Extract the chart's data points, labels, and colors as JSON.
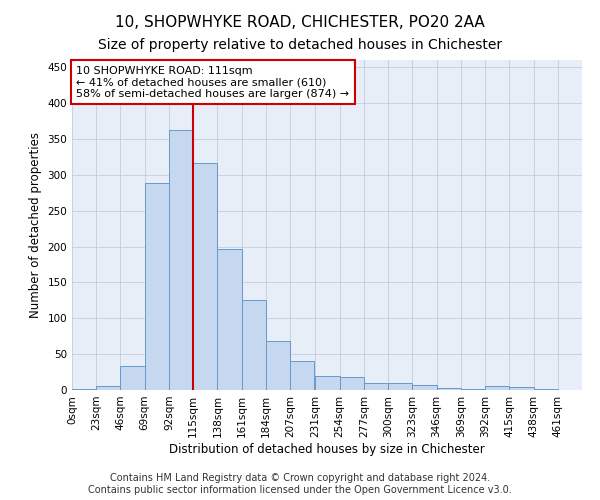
{
  "title": "10, SHOPWHYKE ROAD, CHICHESTER, PO20 2AA",
  "subtitle": "Size of property relative to detached houses in Chichester",
  "xlabel": "Distribution of detached houses by size in Chichester",
  "ylabel": "Number of detached properties",
  "bar_color": "#c5d8f0",
  "bar_edge_color": "#6699cc",
  "background_color": "#e8eef8",
  "annotation_box_color": "#cc0000",
  "annotation_line1": "10 SHOPWHYKE ROAD: 111sqm",
  "annotation_line2": "← 41% of detached houses are smaller (610)",
  "annotation_line3": "58% of semi-detached houses are larger (874) →",
  "vline_x": 115,
  "vline_color": "#cc0000",
  "categories": [
    "0sqm",
    "23sqm",
    "46sqm",
    "69sqm",
    "92sqm",
    "115sqm",
    "138sqm",
    "161sqm",
    "184sqm",
    "207sqm",
    "231sqm",
    "254sqm",
    "277sqm",
    "300sqm",
    "323sqm",
    "346sqm",
    "369sqm",
    "392sqm",
    "415sqm",
    "438sqm",
    "461sqm"
  ],
  "bin_edges": [
    0,
    23,
    46,
    69,
    92,
    115,
    138,
    161,
    184,
    207,
    231,
    254,
    277,
    300,
    323,
    346,
    369,
    392,
    415,
    438,
    461
  ],
  "bar_heights": [
    2,
    5,
    33,
    288,
    362,
    316,
    196,
    126,
    68,
    40,
    19,
    18,
    10,
    10,
    7,
    3,
    1,
    5,
    4,
    1,
    0
  ],
  "ylim": [
    0,
    460
  ],
  "yticks": [
    0,
    50,
    100,
    150,
    200,
    250,
    300,
    350,
    400,
    450
  ],
  "footer_text": "Contains HM Land Registry data © Crown copyright and database right 2024.\nContains public sector information licensed under the Open Government Licence v3.0.",
  "grid_color": "#b8c8e0",
  "title_fontsize": 11,
  "subtitle_fontsize": 10,
  "tick_fontsize": 7.5,
  "label_fontsize": 8.5,
  "footer_fontsize": 7
}
